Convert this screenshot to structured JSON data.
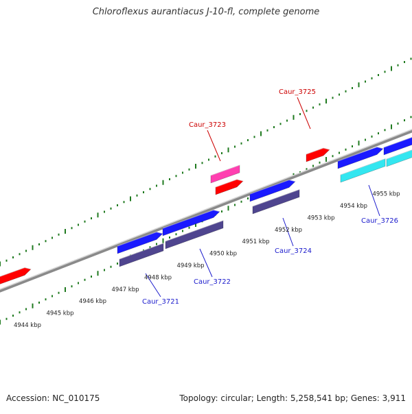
{
  "title": "Chloroflexus aurantiacus J-10-fl, complete genome",
  "footer": {
    "accession": "Accession: NC_010175",
    "summary": "Topology: circular; Length: 5,258,541 bp; Genes: 3,911"
  },
  "colors": {
    "backbone": "#7a7a7a",
    "tick": "#1f7a1f",
    "gene_red": "#ff0000",
    "gene_magenta": "#ff3fb0",
    "gene_blue": "#1a1aff",
    "gene_slate": "#4f458f",
    "gene_cyan": "#33e6f0",
    "label_red": "#cc0000",
    "label_blue": "#1a1acc"
  },
  "scale": {
    "unit": "kbp",
    "labels": [
      {
        "kbp": 4944,
        "text": "4944 kbp"
      },
      {
        "kbp": 4945,
        "text": "4945 kbp"
      },
      {
        "kbp": 4946,
        "text": "4946 kbp"
      },
      {
        "kbp": 4947,
        "text": "4947 kbp"
      },
      {
        "kbp": 4948,
        "text": "4948 kbp"
      },
      {
        "kbp": 4949,
        "text": "4949 kbp"
      },
      {
        "kbp": 4950,
        "text": "4950 kbp"
      },
      {
        "kbp": 4951,
        "text": "4951 kbp"
      },
      {
        "kbp": 4952,
        "text": "4952 kbp"
      },
      {
        "kbp": 4953,
        "text": "4953 kbp"
      },
      {
        "kbp": 4954,
        "text": "4954 kbp"
      },
      {
        "kbp": 4955,
        "text": "4955 kbp"
      }
    ]
  },
  "genes": [
    {
      "label": "Caur_3721",
      "color_key": "gene_blue",
      "label_color": "label_blue"
    },
    {
      "label": "Caur_3722",
      "color_key": "gene_blue",
      "label_color": "label_blue"
    },
    {
      "label": "Caur_3723",
      "color_key": "gene_magenta",
      "label_color": "label_red"
    },
    {
      "label": "Caur_3724",
      "color_key": "gene_blue",
      "label_color": "label_blue"
    },
    {
      "label": "Caur_3725",
      "color_key": "gene_red",
      "label_color": "label_red"
    },
    {
      "label": "Caur_3726",
      "color_key": "gene_cyan",
      "label_color": "label_blue"
    }
  ]
}
